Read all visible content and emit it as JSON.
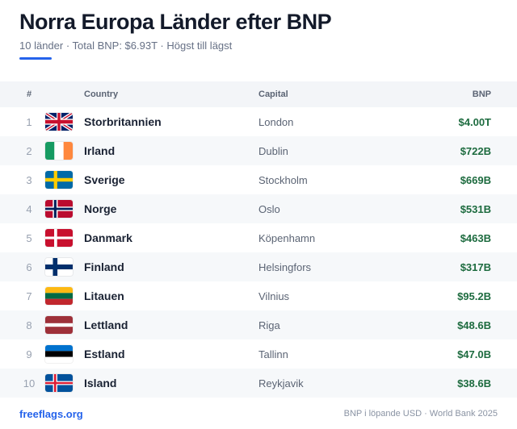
{
  "header": {
    "title": "Norra Europa Länder efter BNP",
    "subtitle": "10 länder · Total BNP: $6.93T · Högst till lägst"
  },
  "table": {
    "columns": [
      "#",
      "Country",
      "Capital",
      "BNP"
    ],
    "rows": [
      [
        1,
        "Storbritannien",
        "London",
        "$4.00T"
      ],
      [
        2,
        "Irland",
        "Dublin",
        "$722B"
      ],
      [
        3,
        "Sverige",
        "Stockholm",
        "$669B"
      ],
      [
        4,
        "Norge",
        "Oslo",
        "$531B"
      ],
      [
        5,
        "Danmark",
        "Köpenhamn",
        "$463B"
      ],
      [
        6,
        "Finland",
        "Helsingfors",
        "$317B"
      ],
      [
        7,
        "Litauen",
        "Vilnius",
        "$95.2B"
      ],
      [
        8,
        "Lettland",
        "Riga",
        "$48.6B"
      ],
      [
        9,
        "Estland",
        "Tallinn",
        "$47.0B"
      ],
      [
        10,
        "Island",
        "Reykjavik",
        "$38.6B"
      ]
    ]
  },
  "footer": {
    "source": "freeflags.org",
    "note": "BNP i löpande USD · World Bank 2025"
  }
}
